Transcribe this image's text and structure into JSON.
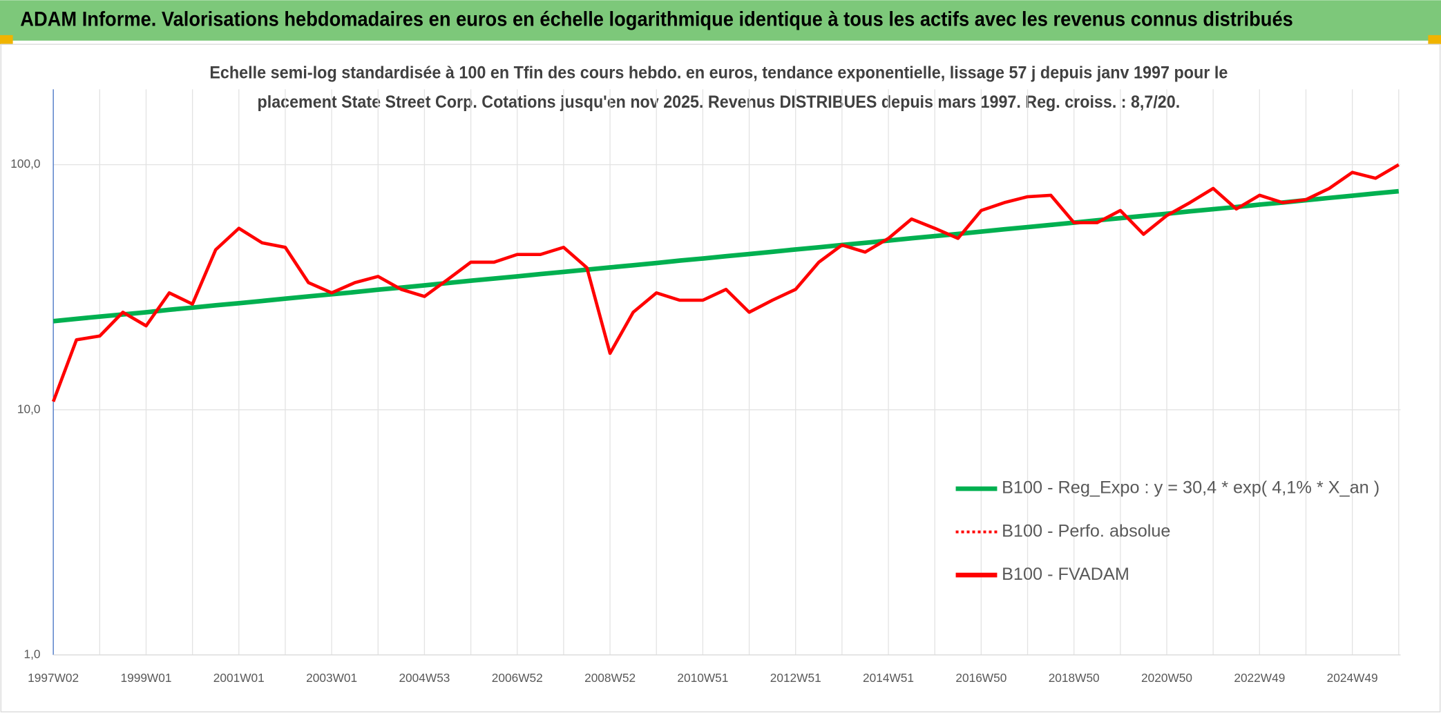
{
  "header": {
    "title": "ADAM Informe. Valorisations hebdomadaires en euros en échelle logarithmique identique à tous les actifs avec les revenus connus distribués"
  },
  "chart_data": {
    "type": "line",
    "subtitle": [
      "Echelle semi-log standardisée à 100 en Tfin des cours hebdo. en euros, tendance exponentielle, lissage 57 j depuis janv 1997 pour le",
      "placement State Street Corp. Cotations jusqu'en nov 2025. Revenus DISTRIBUES depuis mars 1997. Reg. croiss. : 8,7/20."
    ],
    "categories": [
      "1997W02",
      null,
      null,
      null,
      "1999W01",
      null,
      null,
      null,
      "2001W01",
      null,
      null,
      null,
      "2003W01",
      null,
      null,
      null,
      "2004W53",
      null,
      null,
      null,
      "2006W52",
      null,
      null,
      null,
      "2008W52",
      null,
      null,
      null,
      "2010W51",
      null,
      null,
      null,
      "2012W51",
      null,
      null,
      null,
      "2014W51",
      null,
      null,
      null,
      "2016W50",
      null,
      null,
      null,
      "2018W50",
      null,
      null,
      null,
      "2020W50",
      null,
      null,
      null,
      "2022W49",
      null,
      null,
      null,
      "2024W49",
      null,
      null
    ],
    "log_scale": true,
    "ylim": [
      1,
      203
    ],
    "yticks": [
      {
        "value": 1,
        "label": "1,0"
      },
      {
        "value": 10,
        "label": "10,0"
      },
      {
        "value": 100,
        "label": "100,0"
      }
    ],
    "grid": true,
    "legend": "right",
    "series": [
      {
        "name": "B100 - Reg_Expo : y = 30,4 * exp( 4,1% *  X_an )",
        "color": "#00b050",
        "values": [
          23.0,
          23.5,
          24.0,
          24.5,
          25.0,
          25.6,
          26.1,
          26.7,
          27.2,
          27.8,
          28.4,
          29.0,
          29.6,
          30.2,
          30.9,
          31.5,
          32.2,
          32.9,
          33.6,
          34.3,
          35.0,
          35.8,
          36.5,
          37.3,
          38.1,
          38.9,
          39.7,
          40.6,
          41.4,
          42.3,
          43.2,
          44.1,
          45.1,
          46.0,
          47.0,
          48.0,
          49.0,
          50.1,
          51.1,
          52.2,
          53.3,
          54.5,
          55.6,
          56.8,
          58.0,
          59.3,
          60.5,
          61.8,
          63.1,
          64.5,
          65.8,
          67.2,
          68.7,
          70.1,
          71.6,
          73.2,
          74.7,
          76.3,
          77.9
        ]
      },
      {
        "name": "B100 - Perfo. absolue",
        "color": "#ff0000",
        "dash": "dotted"
      },
      {
        "name": "B100 - FVADAM",
        "color": "#ff0000",
        "values": [
          10.8,
          19.3,
          20,
          25,
          22,
          30,
          27,
          45,
          55,
          48,
          46,
          33,
          30,
          33,
          35,
          31,
          29,
          34,
          40,
          40,
          43,
          43,
          46,
          38,
          17,
          25,
          30,
          28,
          28,
          31,
          25,
          28,
          31,
          40,
          47,
          44,
          50,
          60,
          55,
          50,
          65,
          70,
          74,
          75,
          58,
          58,
          65,
          52,
          62,
          70,
          80,
          66,
          75,
          70,
          72,
          80,
          93,
          88,
          100
        ]
      }
    ]
  }
}
